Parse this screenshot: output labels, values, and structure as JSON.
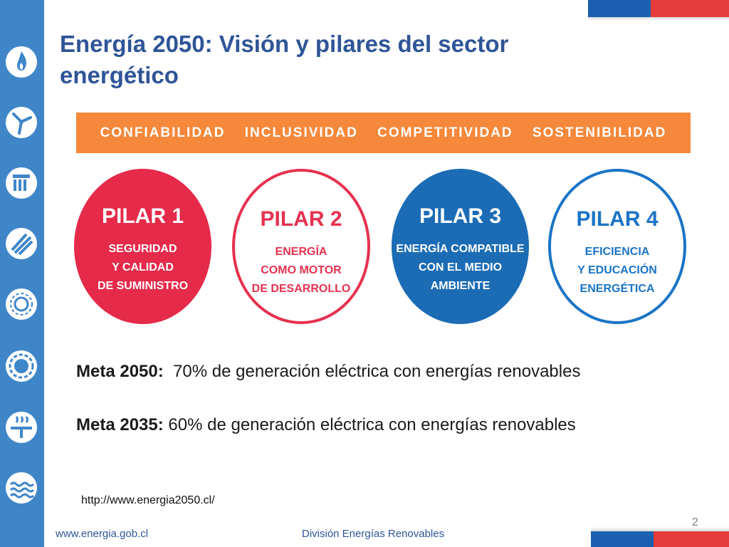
{
  "title": "Energía 2050: Visión y pilares del sector energético",
  "banner": [
    "CONFIABILIDAD",
    "INCLUSIVIDAD",
    "COMPETITIVIDAD",
    "SOSTENIBILIDAD"
  ],
  "pillars": [
    {
      "title": "PILAR 1",
      "lines": [
        "SEGURIDAD",
        "Y CALIDAD",
        "DE SUMINISTRO"
      ],
      "color": "#e52a4a"
    },
    {
      "title": "PILAR 2",
      "lines": [
        "ENERGÍA",
        "COMO MOTOR",
        "DE DESARROLLO"
      ],
      "color": "#e5324f"
    },
    {
      "title": "PILAR 3",
      "lines": [
        "ENERGÍA COMPATIBLE",
        "CON EL MEDIO",
        "AMBIENTE"
      ],
      "color": "#1b6cb5"
    },
    {
      "title": "PILAR 4",
      "lines": [
        "EFICIENCIA",
        "Y EDUCACIÓN",
        "ENERGÉTICA"
      ],
      "color": "#1b74c6"
    }
  ],
  "goals": [
    {
      "label": "Meta 2050:",
      "text": "70% de generación eléctrica con energías renovables"
    },
    {
      "label": "Meta 2035:",
      "text": "60% de generación eléctrica con energías renovables"
    }
  ],
  "link": "http://www.energia2050.cl/",
  "page_number": "2",
  "footer": {
    "website": "www.energia.gob.cl",
    "division": "División Energías Renovables"
  },
  "sidebar_icons": [
    "flame-icon",
    "wind-turbine-icon",
    "hydro-dam-icon",
    "solar-panel-icon",
    "sun-outline-icon",
    "sun-icon",
    "geothermal-icon",
    "ocean-wave-icon"
  ],
  "colors": {
    "sidebar": "#3f86c9",
    "title": "#2f5597",
    "banner": "#f5883a",
    "flag_blue": "#1b5fb0",
    "flag_red": "#e53b3b"
  }
}
